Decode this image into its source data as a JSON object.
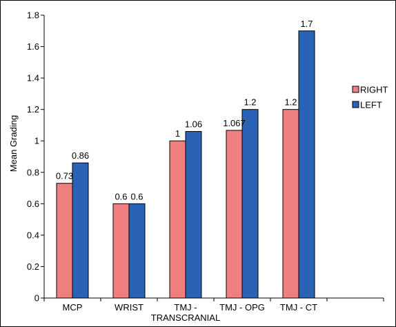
{
  "chart_data": {
    "type": "bar",
    "title": "",
    "xlabel": "",
    "ylabel": "Mean Grading",
    "ylim": [
      0,
      1.8
    ],
    "y_ticks": [
      "0",
      "0.2",
      "0.4",
      "0.6",
      "0.8",
      "1",
      "1.2",
      "1.4",
      "1.6",
      "1.8"
    ],
    "grid": false,
    "legend_position": "right",
    "categories": [
      [
        "MCP"
      ],
      [
        "WRIST"
      ],
      [
        "TMJ -",
        "TRANSCRANIAL"
      ],
      [
        "TMJ - OPG"
      ],
      [
        "TMJ - CT"
      ]
    ],
    "series": [
      {
        "name": "RIGHT",
        "color": "#F08080",
        "values": [
          0.73,
          0.6,
          1,
          1.067,
          1.2
        ],
        "labels": [
          "0.73",
          "0.6",
          "1",
          "1.067",
          "1.2"
        ]
      },
      {
        "name": "LEFT",
        "color": "#2A63B5",
        "values": [
          0.86,
          0.6,
          1.06,
          1.2,
          1.7
        ],
        "labels": [
          "0.86",
          "0.6",
          "1.06",
          "1.2",
          "1.7"
        ]
      }
    ]
  }
}
